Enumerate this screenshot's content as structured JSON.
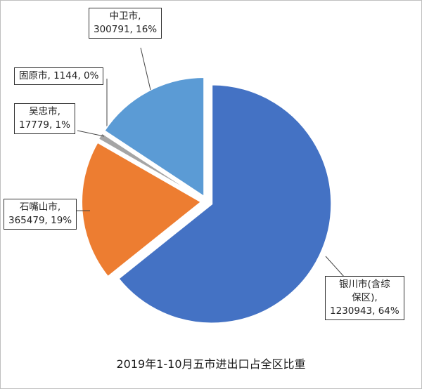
{
  "chart_data": {
    "type": "pie",
    "title": "2019年1-10月五市进出口占全区比重",
    "slices": [
      {
        "name": "银川市(含综保区)",
        "value": 1230943,
        "percent": "64%",
        "color": "#4472c4",
        "label_lines": [
          "银川市(含综",
          "保区),",
          "1230943, 64%"
        ]
      },
      {
        "name": "石嘴山市",
        "value": 365479,
        "percent": "19%",
        "color": "#ed7d31",
        "label_lines": [
          "石嘴山市,",
          "365479, 19%"
        ]
      },
      {
        "name": "吴忠市",
        "value": 17779,
        "percent": "1%",
        "color": "#a5a5a5",
        "label_lines": [
          "吴忠市,",
          "17779, 1%"
        ]
      },
      {
        "name": "固原市",
        "value": 1144,
        "percent": "0%",
        "color": "#ffc000",
        "label_lines": [
          "固原市, 1144, 0%"
        ]
      },
      {
        "name": "中卫市",
        "value": 300791,
        "percent": "16%",
        "color": "#5b9bd5",
        "label_lines": [
          "中卫市,",
          "300791, 16%"
        ]
      }
    ],
    "start_angle": "12 o'clock",
    "direction": "clockwise",
    "exploded": true,
    "legend": "none"
  }
}
